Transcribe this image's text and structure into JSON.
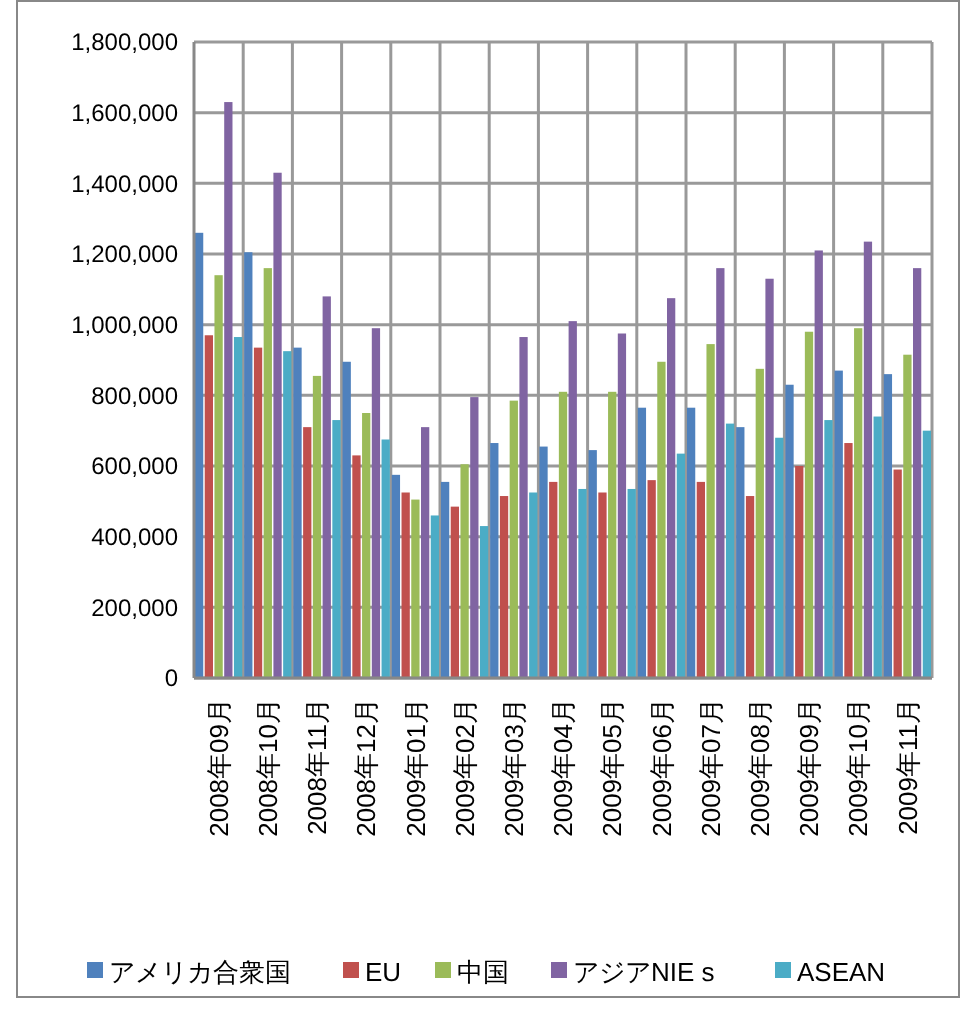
{
  "chart_data": {
    "type": "bar",
    "categories": [
      "2008年09月",
      "2008年10月",
      "2008年11月",
      "2008年12月",
      "2009年01月",
      "2009年02月",
      "2009年03月",
      "2009年04月",
      "2009年05月",
      "2009年06月",
      "2009年07月",
      "2009年08月",
      "2009年09月",
      "2009年10月",
      "2009年11月"
    ],
    "series": [
      {
        "name": "アメリカ合衆国",
        "color": "#4f81bd",
        "values": [
          1260000,
          1205000,
          935000,
          895000,
          575000,
          555000,
          665000,
          655000,
          645000,
          765000,
          765000,
          710000,
          830000,
          870000,
          860000
        ]
      },
      {
        "name": "EU",
        "color": "#c0504d",
        "values": [
          970000,
          935000,
          710000,
          630000,
          525000,
          485000,
          515000,
          555000,
          525000,
          560000,
          555000,
          515000,
          600000,
          665000,
          590000
        ]
      },
      {
        "name": "中国",
        "color": "#9bbb59",
        "values": [
          1140000,
          1160000,
          855000,
          750000,
          505000,
          605000,
          785000,
          810000,
          810000,
          895000,
          945000,
          875000,
          980000,
          990000,
          915000
        ]
      },
      {
        "name": "アジアNIE s",
        "color": "#8064a2",
        "values": [
          1630000,
          1430000,
          1080000,
          990000,
          710000,
          795000,
          965000,
          1010000,
          975000,
          1075000,
          1160000,
          1130000,
          1210000,
          1235000,
          1160000
        ]
      },
      {
        "name": "ASEAN",
        "color": "#4bacc6",
        "values": [
          965000,
          925000,
          730000,
          675000,
          460000,
          430000,
          525000,
          535000,
          535000,
          635000,
          720000,
          680000,
          730000,
          740000,
          700000
        ]
      }
    ],
    "ylim": [
      0,
      1800000
    ],
    "yticks": [
      {
        "value": 0,
        "label": "0"
      },
      {
        "value": 200000,
        "label": "200,000"
      },
      {
        "value": 400000,
        "label": "400,000"
      },
      {
        "value": 600000,
        "label": "600,000"
      },
      {
        "value": 800000,
        "label": "800,000"
      },
      {
        "value": 1000000,
        "label": "1,000,000"
      },
      {
        "value": 1200000,
        "label": "1,200,000"
      },
      {
        "value": 1400000,
        "label": "1,400,000"
      },
      {
        "value": 1600000,
        "label": "1,600,000"
      },
      {
        "value": 1800000,
        "label": "1,800,000"
      }
    ],
    "grid": true,
    "legend": "bottom"
  }
}
